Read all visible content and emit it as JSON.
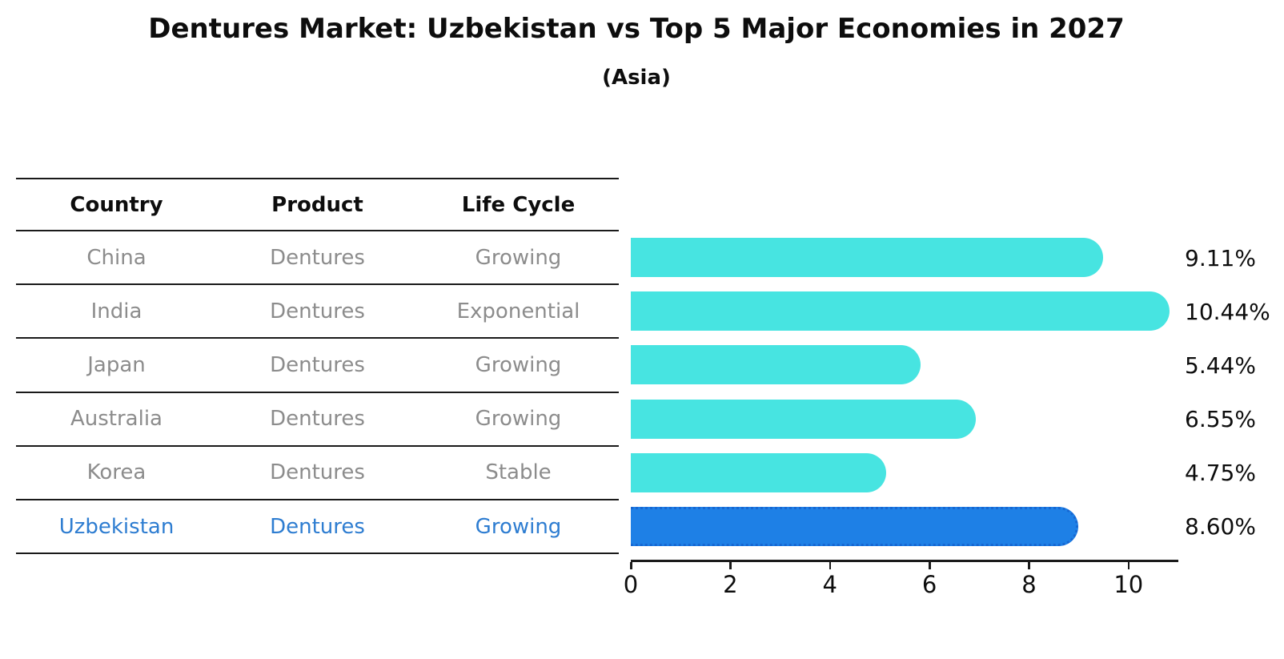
{
  "page": {
    "title": "Dentures Market: Uzbekistan vs Top 5 Major Economies in 2027",
    "subtitle": "(Asia)"
  },
  "table": {
    "headers": {
      "country": "Country",
      "product": "Product",
      "life_cycle": "Life Cycle"
    },
    "rows": [
      {
        "country": "China",
        "product": "Dentures",
        "life_cycle": "Growing",
        "highlighted": false
      },
      {
        "country": "India",
        "product": "Dentures",
        "life_cycle": "Exponential",
        "highlighted": false
      },
      {
        "country": "Japan",
        "product": "Dentures",
        "life_cycle": "Growing",
        "highlighted": false
      },
      {
        "country": "Australia",
        "product": "Dentures",
        "life_cycle": "Growing",
        "highlighted": false
      },
      {
        "country": "Korea",
        "product": "Dentures",
        "life_cycle": "Stable",
        "highlighted": false
      },
      {
        "country": "Uzbekistan",
        "product": "Dentures",
        "life_cycle": "Growing",
        "highlighted": true
      }
    ]
  },
  "chart_data": {
    "type": "bar",
    "orientation": "horizontal",
    "title": "Dentures Market: Uzbekistan vs Top 5 Major Economies in 2027",
    "subtitle": "(Asia)",
    "categories": [
      "China",
      "India",
      "Japan",
      "Australia",
      "Korea",
      "Uzbekistan"
    ],
    "values": [
      9.11,
      10.44,
      5.44,
      6.55,
      4.75,
      8.6
    ],
    "value_labels": [
      "9.11%",
      "10.44%",
      "5.44%",
      "6.55%",
      "4.75%",
      "8.60%"
    ],
    "highlight_index": 5,
    "xticks": [
      0,
      2,
      4,
      6,
      8,
      10
    ],
    "xlim": [
      0,
      11
    ],
    "grid": false,
    "legend_position": "none"
  },
  "colors": {
    "bar": "#47e4e1",
    "highlight_bar": "#1e80e6",
    "highlight_border": "#1767d2",
    "highlight_text": "#2e7dd1",
    "row_text": "#8c8c8c",
    "header_text": "#0d0d0d",
    "axis": "#1a1a1a"
  }
}
